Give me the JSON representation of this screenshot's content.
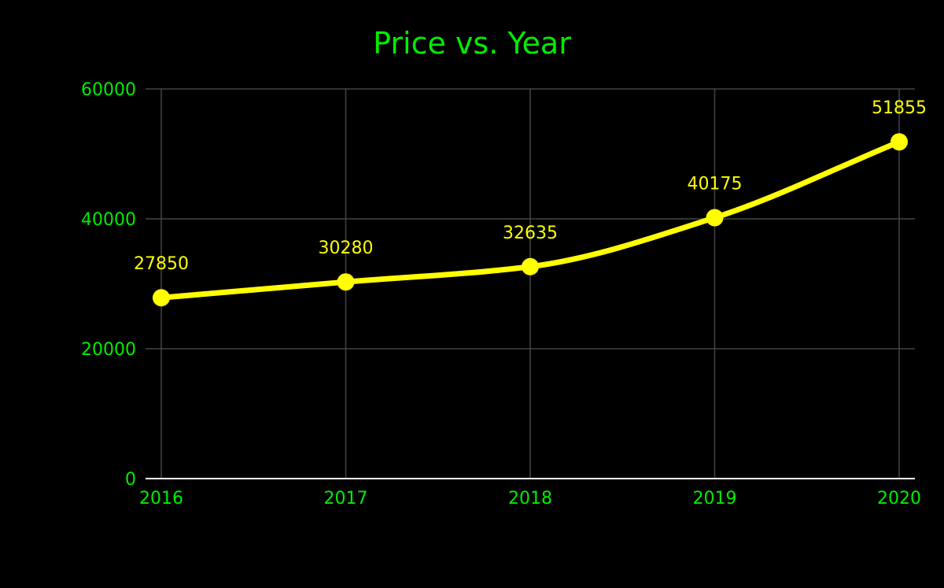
{
  "chart_data": {
    "type": "line",
    "title": "Price vs. Year",
    "xlabel": "",
    "ylabel": "",
    "x": [
      "2016",
      "2017",
      "2018",
      "2019",
      "2020"
    ],
    "series": [
      {
        "values": [
          27850,
          30280,
          32635,
          40175,
          51855
        ]
      }
    ],
    "data_labels": [
      "27850",
      "30280",
      "32635",
      "40175",
      "51855"
    ],
    "ylim": [
      0,
      60000
    ],
    "yticks": [
      "0",
      "20000",
      "40000",
      "60000"
    ],
    "grid": true,
    "legend": "none",
    "smooth": true
  },
  "colors": {
    "background": "#000000",
    "title": "#00ee00",
    "tick_labels": "#00ee00",
    "line": "#ffff00",
    "data_labels": "#ffff00",
    "grid": "#444444",
    "axis": "#ffffff"
  }
}
